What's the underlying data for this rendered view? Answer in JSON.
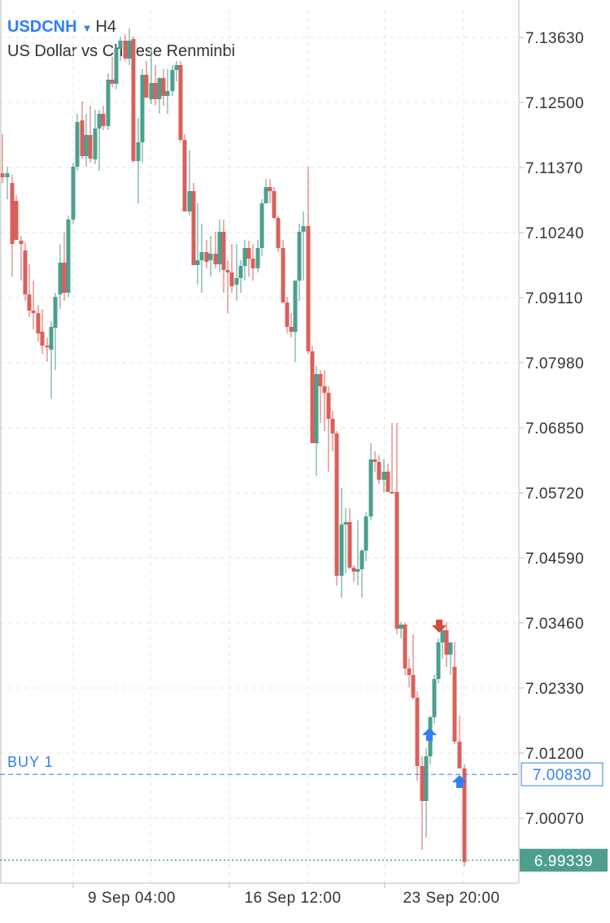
{
  "header": {
    "symbol": "USDCNH",
    "timeframe": "H4",
    "description": "US Dollar vs Chinese Renminbi",
    "caret": "▼"
  },
  "chart_data": {
    "type": "candlestick",
    "symbol": "USDCNH",
    "timeframe": "H4",
    "y_ticks": [
      7.1363,
      7.125,
      7.1137,
      7.1024,
      7.0911,
      7.0798,
      7.0685,
      7.0572,
      7.0459,
      7.0346,
      7.0233,
      7.012,
      7.0007
    ],
    "y_tick_labels": [
      "7.13630",
      "7.12500",
      "7.11370",
      "7.10240",
      "7.09110",
      "7.07980",
      "7.06850",
      "7.05720",
      "7.04590",
      "7.03460",
      "7.02330",
      "7.01200",
      "7.00070"
    ],
    "x_tick_labels": [
      "9 Sep 04:00",
      "16 Sep 12:00",
      "23 Sep 20:00"
    ],
    "ylim": [
      6.9913,
      7.1398
    ],
    "colors": {
      "up": "#4e9e8e",
      "down": "#d9605a",
      "grid": "#e4e4e4",
      "buy_line": "#2f7ff0",
      "price_line": "#4e9e8e"
    },
    "buy_line": {
      "label": "BUY 1",
      "price": "7.00830",
      "value": 7.0083
    },
    "current_price": {
      "price": "6.99339",
      "value": 6.99339
    },
    "arrow_colors": {
      "buy": "#2f7ff0",
      "sell": "#d9463a"
    }
  }
}
